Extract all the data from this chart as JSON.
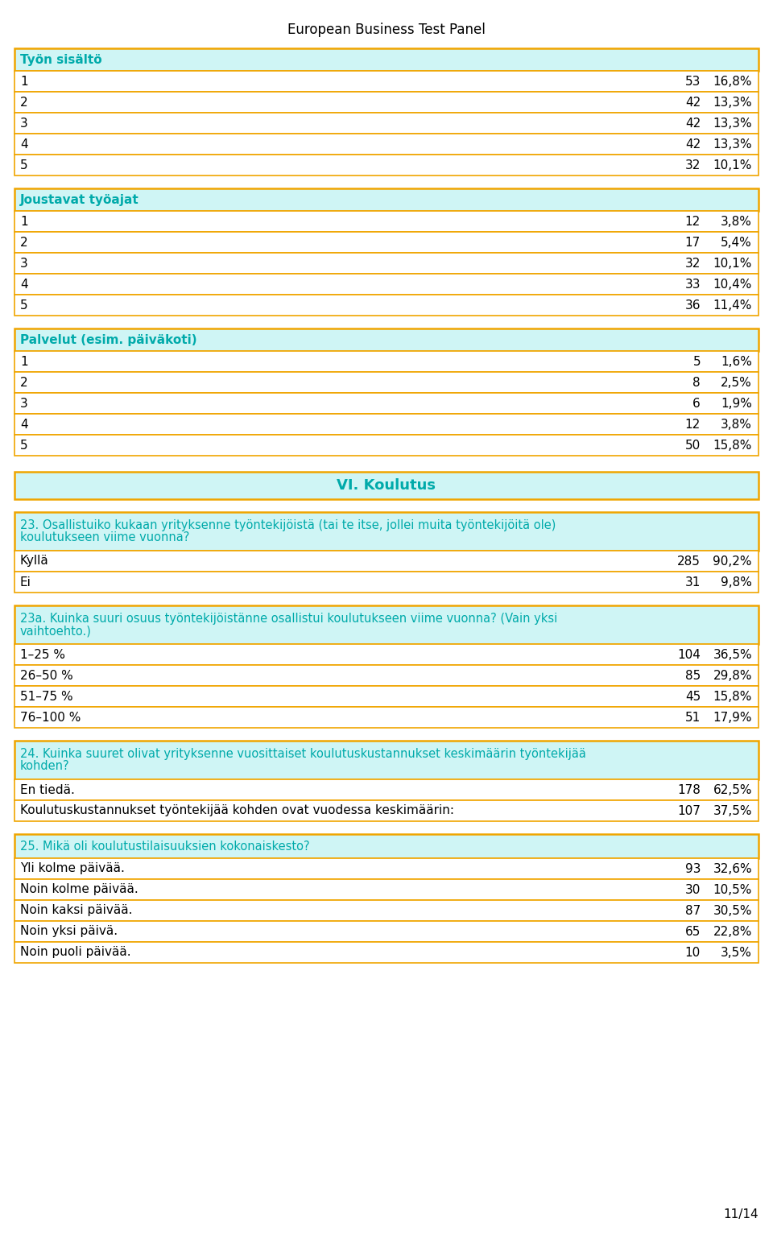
{
  "title": "European Business Test Panel",
  "page_num": "11/14",
  "bg_color": "#ffffff",
  "header_bg": "#cff5f5",
  "header_border": "#f0a500",
  "header_text_color": "#00aaaa",
  "num_text_color": "#000000",
  "pct_text_color": "#000000",
  "label_text_color": "#000000",
  "sections": [
    {
      "header": "Työn sisältö",
      "rows": [
        {
          "label": "1",
          "n": "53",
          "pct": "16,8%"
        },
        {
          "label": "2",
          "n": "42",
          "pct": "13,3%"
        },
        {
          "label": "3",
          "n": "42",
          "pct": "13,3%"
        },
        {
          "label": "4",
          "n": "42",
          "pct": "13,3%"
        },
        {
          "label": "5",
          "n": "32",
          "pct": "10,1%"
        }
      ]
    },
    {
      "header": "Joustavat työajat",
      "rows": [
        {
          "label": "1",
          "n": "12",
          "pct": "3,8%"
        },
        {
          "label": "2",
          "n": "17",
          "pct": "5,4%"
        },
        {
          "label": "3",
          "n": "32",
          "pct": "10,1%"
        },
        {
          "label": "4",
          "n": "33",
          "pct": "10,4%"
        },
        {
          "label": "5",
          "n": "36",
          "pct": "11,4%"
        }
      ]
    },
    {
      "header": "Palvelut (esim. päiväkoti)",
      "rows": [
        {
          "label": "1",
          "n": "5",
          "pct": "1,6%"
        },
        {
          "label": "2",
          "n": "8",
          "pct": "2,5%"
        },
        {
          "label": "3",
          "n": "6",
          "pct": "1,9%"
        },
        {
          "label": "4",
          "n": "12",
          "pct": "3,8%"
        },
        {
          "label": "5",
          "n": "50",
          "pct": "15,8%"
        }
      ]
    }
  ],
  "section_header": "VI. Koulutus",
  "subsections": [
    {
      "header_lines": [
        "23. Osallistuiko kukaan yrityksenne työntekijöistä (tai te itse, jollei muita työntekijöitä ole)",
        "koulutukseen viime vuonna?"
      ],
      "rows": [
        {
          "label": "Kyllä",
          "n": "285",
          "pct": "90,2%"
        },
        {
          "label": "Ei",
          "n": "31",
          "pct": "9,8%"
        }
      ]
    },
    {
      "header_lines": [
        "23a. Kuinka suuri osuus työntekijöistänne osallistui koulutukseen viime vuonna? (Vain yksi",
        "vaihtoehto.)"
      ],
      "rows": [
        {
          "label": "1–25 %",
          "n": "104",
          "pct": "36,5%"
        },
        {
          "label": "26–50 %",
          "n": "85",
          "pct": "29,8%"
        },
        {
          "label": "51–75 %",
          "n": "45",
          "pct": "15,8%"
        },
        {
          "label": "76–100 %",
          "n": "51",
          "pct": "17,9%"
        }
      ]
    },
    {
      "header_lines": [
        "24. Kuinka suuret olivat yrityksenne vuosittaiset koulutuskustannukset keskimäärin työntekijää",
        "kohden?"
      ],
      "rows": [
        {
          "label": "En tiedä.",
          "n": "178",
          "pct": "62,5%"
        },
        {
          "label": "Koulutuskustannukset työntekijää kohden ovat vuodessa keskimäärin:",
          "n": "107",
          "pct": "37,5%"
        }
      ]
    },
    {
      "header_lines": [
        "25. Mikä oli koulutustilaisuuksien kokonaiskesto?"
      ],
      "rows": [
        {
          "label": "Yli kolme päivää.",
          "n": "93",
          "pct": "32,6%"
        },
        {
          "label": "Noin kolme päivää.",
          "n": "30",
          "pct": "10,5%"
        },
        {
          "label": "Noin kaksi päivää.",
          "n": "87",
          "pct": "30,5%"
        },
        {
          "label": "Noin yksi päivä.",
          "n": "65",
          "pct": "22,8%"
        },
        {
          "label": "Noin puoli päivää.",
          "n": "10",
          "pct": "3,5%"
        }
      ]
    }
  ]
}
